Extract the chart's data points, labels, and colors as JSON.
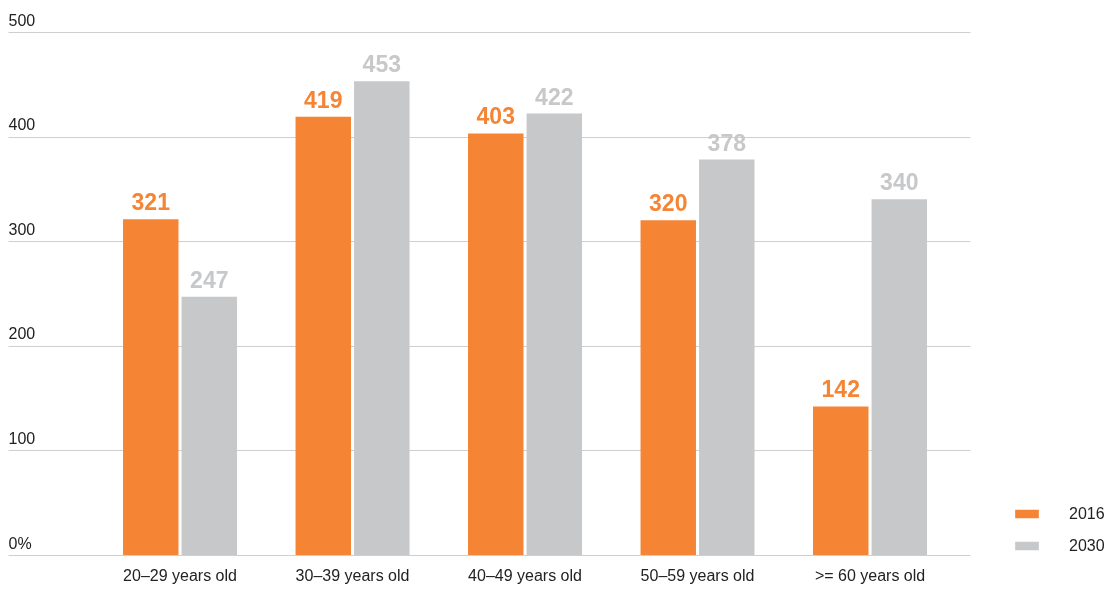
{
  "chart_data": {
    "type": "bar",
    "categories": [
      "20–29 years old",
      "30–39 years old",
      "40–49 years old",
      "50–59 years old",
      ">= 60 years old"
    ],
    "series": [
      {
        "name": "2016",
        "color": "#f58535",
        "values": [
          321,
          419,
          403,
          320,
          142
        ]
      },
      {
        "name": "2030",
        "color": "#c7c8ca",
        "values": [
          247,
          453,
          422,
          378,
          340
        ]
      }
    ],
    "ylim": [
      0,
      500
    ],
    "yticks": [
      {
        "value": 0,
        "label": "0%"
      },
      100,
      200,
      300,
      400,
      500
    ],
    "grid": "y",
    "legend": "bottom right",
    "data_labels": true
  }
}
